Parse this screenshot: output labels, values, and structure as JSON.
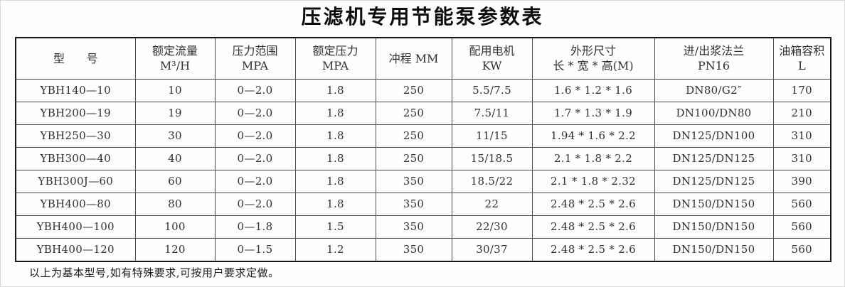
{
  "title": "压滤机专用节能泵参数表",
  "table": {
    "column_keys": [
      "model",
      "rated-flow",
      "pressure-range",
      "rated-pressure",
      "stroke",
      "motor-power",
      "dimensions",
      "flange",
      "tank-capacity"
    ],
    "headers": [
      {
        "line1": "型      号",
        "line2": ""
      },
      {
        "line1": "额定流量",
        "line2": "M³/H"
      },
      {
        "line1": "压力范围",
        "line2": "MPA"
      },
      {
        "line1": "额定压力",
        "line2": "MPA"
      },
      {
        "line1": "冲程 MM",
        "line2": ""
      },
      {
        "line1": "配用电机",
        "line2": "KW"
      },
      {
        "line1": "外形尺寸",
        "line2": "长 * 宽 * 高(M)"
      },
      {
        "line1": "进/出浆法兰",
        "line2": "PN16"
      },
      {
        "line1": "油箱容积",
        "line2": "L"
      }
    ],
    "rows": [
      [
        "YBH140—10",
        "10",
        "0—2.0",
        "1.8",
        "250",
        "5.5/7.5",
        "1.6 * 1.2 * 1.6",
        "DN80/G2″",
        "170"
      ],
      [
        "YBH200—19",
        "19",
        "0—2.0",
        "1.8",
        "250",
        "7.5/11",
        "1.7 * 1.3 * 1.9",
        "DN100/DN80",
        "210"
      ],
      [
        "YBH250—30",
        "30",
        "0—2.0",
        "1.8",
        "250",
        "11/15",
        "1.94 * 1.6 * 2.2",
        "DN125/DN100",
        "310"
      ],
      [
        "YBH300—40",
        "40",
        "0—2.0",
        "1.8",
        "250",
        "15/18.5",
        "2.1 * 1.8 * 2.2",
        "DN125/DN125",
        "310"
      ],
      [
        "YBH300J—60",
        "60",
        "0—2.0",
        "1.8",
        "350",
        "18.5/22",
        "2.1 * 1.8 * 2.32",
        "DN125/DN125",
        "390"
      ],
      [
        "YBH400—80",
        "80",
        "0—2.0",
        "1.8",
        "350",
        "22",
        "2.48 * 2.5 * 2.6",
        "DN150/DN150",
        "560"
      ],
      [
        "YBH400—100",
        "100",
        "0—1.8",
        "1.5",
        "350",
        "22/30",
        "2.48 * 2.5 * 2.6",
        "DN150/DN150",
        "560"
      ],
      [
        "YBH400—120",
        "120",
        "0—1.5",
        "1.2",
        "350",
        "30/37",
        "2.48 * 2.5 * 2.6",
        "DN150/DN150",
        "560"
      ]
    ]
  },
  "footnote": "以上为基本型号,如有特殊要求,可按用户要求定做。"
}
